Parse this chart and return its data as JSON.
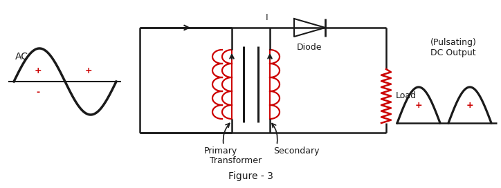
{
  "title": "Figure - 3",
  "bg_color": "#ffffff",
  "line_color": "#1a1a1a",
  "red_color": "#cc0000",
  "ac_label": "AC",
  "diode_label": "Diode",
  "load_label": "Load",
  "primary_label": "Primary",
  "secondary_label": "Secondary",
  "transformer_label": "Transformer",
  "pulsating_label": "(Pulsating)",
  "dc_output_label": "DC Output",
  "current_label": "I",
  "figsize": [
    7.24,
    2.72
  ],
  "dpi": 100
}
